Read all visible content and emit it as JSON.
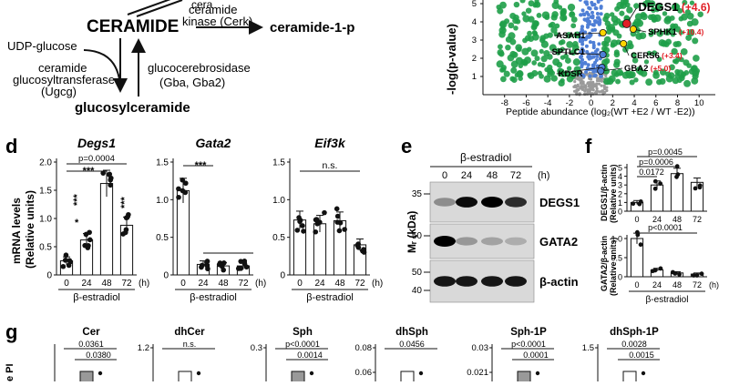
{
  "pathway": {
    "cera_partial": "cera",
    "ceramide": "CERAMIDE",
    "cerk_line1": "ceramide",
    "cerk_line2": "kinase (Cerk)",
    "ceramide_1p": "ceramide-1-p",
    "udp_glucose": "UDP-glucose",
    "ugcg_line1": "ceramide",
    "ugcg_line2": "glucosyltransferase",
    "ugcg_line3": "(Ugcg)",
    "gba_line1": "glucocerebrosidase",
    "gba_line2": "(Gba, Gba2)",
    "glucosylceramide": "glucosylceramide"
  },
  "volcano": {
    "ylabel": "-log(p-value)",
    "xlabel": "Peptide abundance (log₂(WT +E2 / WT -E2))",
    "x_ticks": [
      "-8",
      "-6",
      "-4",
      "-2",
      "0",
      "2",
      "4",
      "6",
      "8",
      "10"
    ],
    "y_ticks": [
      "5",
      "4",
      "3",
      "2",
      "1"
    ],
    "points": [
      {
        "name": "DEGS1",
        "change": "(+4.6)"
      },
      {
        "name": "SPHK1",
        "change": "(+10.4)"
      },
      {
        "name": "CERS6",
        "change": "(+3.4)"
      },
      {
        "name": "ASAH1",
        "change": ""
      },
      {
        "name": "SPTLC1",
        "change": ""
      },
      {
        "name": "KDSR",
        "change": ""
      },
      {
        "name": "GBA2",
        "change": "(+5.0)"
      }
    ],
    "colors": {
      "green": "#1e9e48",
      "blue": "#4f7fd6",
      "gray": "#9a9a9a",
      "highlight_red": "#e11f26"
    }
  },
  "panel_d": {
    "letter": "d",
    "ylabel_line1": "mRNA levels",
    "ylabel_line2": "(Relative units)",
    "xaxis_title": "β-estradiol",
    "unit": "(h)",
    "categories": [
      "0",
      "24",
      "48",
      "72"
    ],
    "charts": [
      {
        "title": "Degs1",
        "yticks": [
          "2.0",
          "1.5",
          "1.0",
          "0.5",
          "0"
        ],
        "values": [
          0.25,
          0.62,
          1.62,
          0.88
        ],
        "sig": [
          "*",
          "***",
          "***",
          "***"
        ],
        "pval": "p=0.0004"
      },
      {
        "title": "Gata2",
        "yticks": [
          "1.5",
          "1.0",
          "0.5",
          "0"
        ],
        "values": [
          1.12,
          0.14,
          0.12,
          0.12
        ],
        "sig": [
          "***"
        ],
        "pval": ""
      },
      {
        "title": "Eif3k",
        "yticks": [
          "1.5",
          "1.0",
          "0.5",
          "0"
        ],
        "values": [
          0.73,
          0.68,
          0.72,
          0.4
        ],
        "sig": [
          "n.s."
        ],
        "pval": ""
      }
    ]
  },
  "panel_e": {
    "letter": "e",
    "treatment": "β-estradiol",
    "lanes": [
      "0",
      "24",
      "48",
      "72"
    ],
    "unit": "(h)",
    "mw_label": "Mᵣ (kDa)",
    "blots": [
      {
        "label": "DEGS1",
        "marker": "35"
      },
      {
        "label": "GATA2",
        "marker": "50"
      },
      {
        "label": "β-actin",
        "marker": "50"
      }
    ],
    "marker_40": "40"
  },
  "panel_f": {
    "letter": "f",
    "top_ylabel_line1": "DEGS1/β-actin",
    "top_ylabel_line2": "(Relative units)",
    "bottom_ylabel_line1": "GATA2/β-actin",
    "bottom_ylabel_line2": "(Relative units)",
    "categories": [
      "0",
      "24",
      "48",
      "72"
    ],
    "unit": "(h)",
    "xaxis_title": "β-estradiol",
    "top_yticks": [
      "5",
      "4",
      "3",
      "2",
      "1",
      "0"
    ],
    "top_values": [
      1.0,
      3.0,
      4.3,
      3.3
    ],
    "top_pvals": [
      "p=0.0045",
      "p=0.0006",
      "0.0172"
    ],
    "bottom_yticks": [
      "1.0",
      "0.5",
      "0"
    ],
    "bottom_values": [
      1.0,
      0.18,
      0.1,
      0.07
    ],
    "bottom_pval": "p<0.0001"
  },
  "panel_g": {
    "letter": "g",
    "ylabel_partial": "e PI",
    "charts": [
      {
        "title": "Cer",
        "ytick": "",
        "pvals": [
          "0.0361",
          "0.0380"
        ]
      },
      {
        "title": "dhCer",
        "ytick": "1.2",
        "pvals": [
          "n.s."
        ]
      },
      {
        "title": "Sph",
        "ytick": "0.3",
        "pvals": [
          "p<0.0001",
          "0.0014"
        ]
      },
      {
        "title": "dhSph",
        "ytick": "0.08",
        "ytick2": "0.06",
        "pvals": [
          "0.0456"
        ]
      },
      {
        "title": "Sph-1P",
        "ytick": "0.03",
        "ytick2": "0.021",
        "pvals": [
          "p<0.0001",
          "0.0001"
        ]
      },
      {
        "title": "dhSph-1P",
        "ytick": "1.5",
        "pvals": [
          "0.0028",
          "0.0015"
        ]
      }
    ]
  }
}
